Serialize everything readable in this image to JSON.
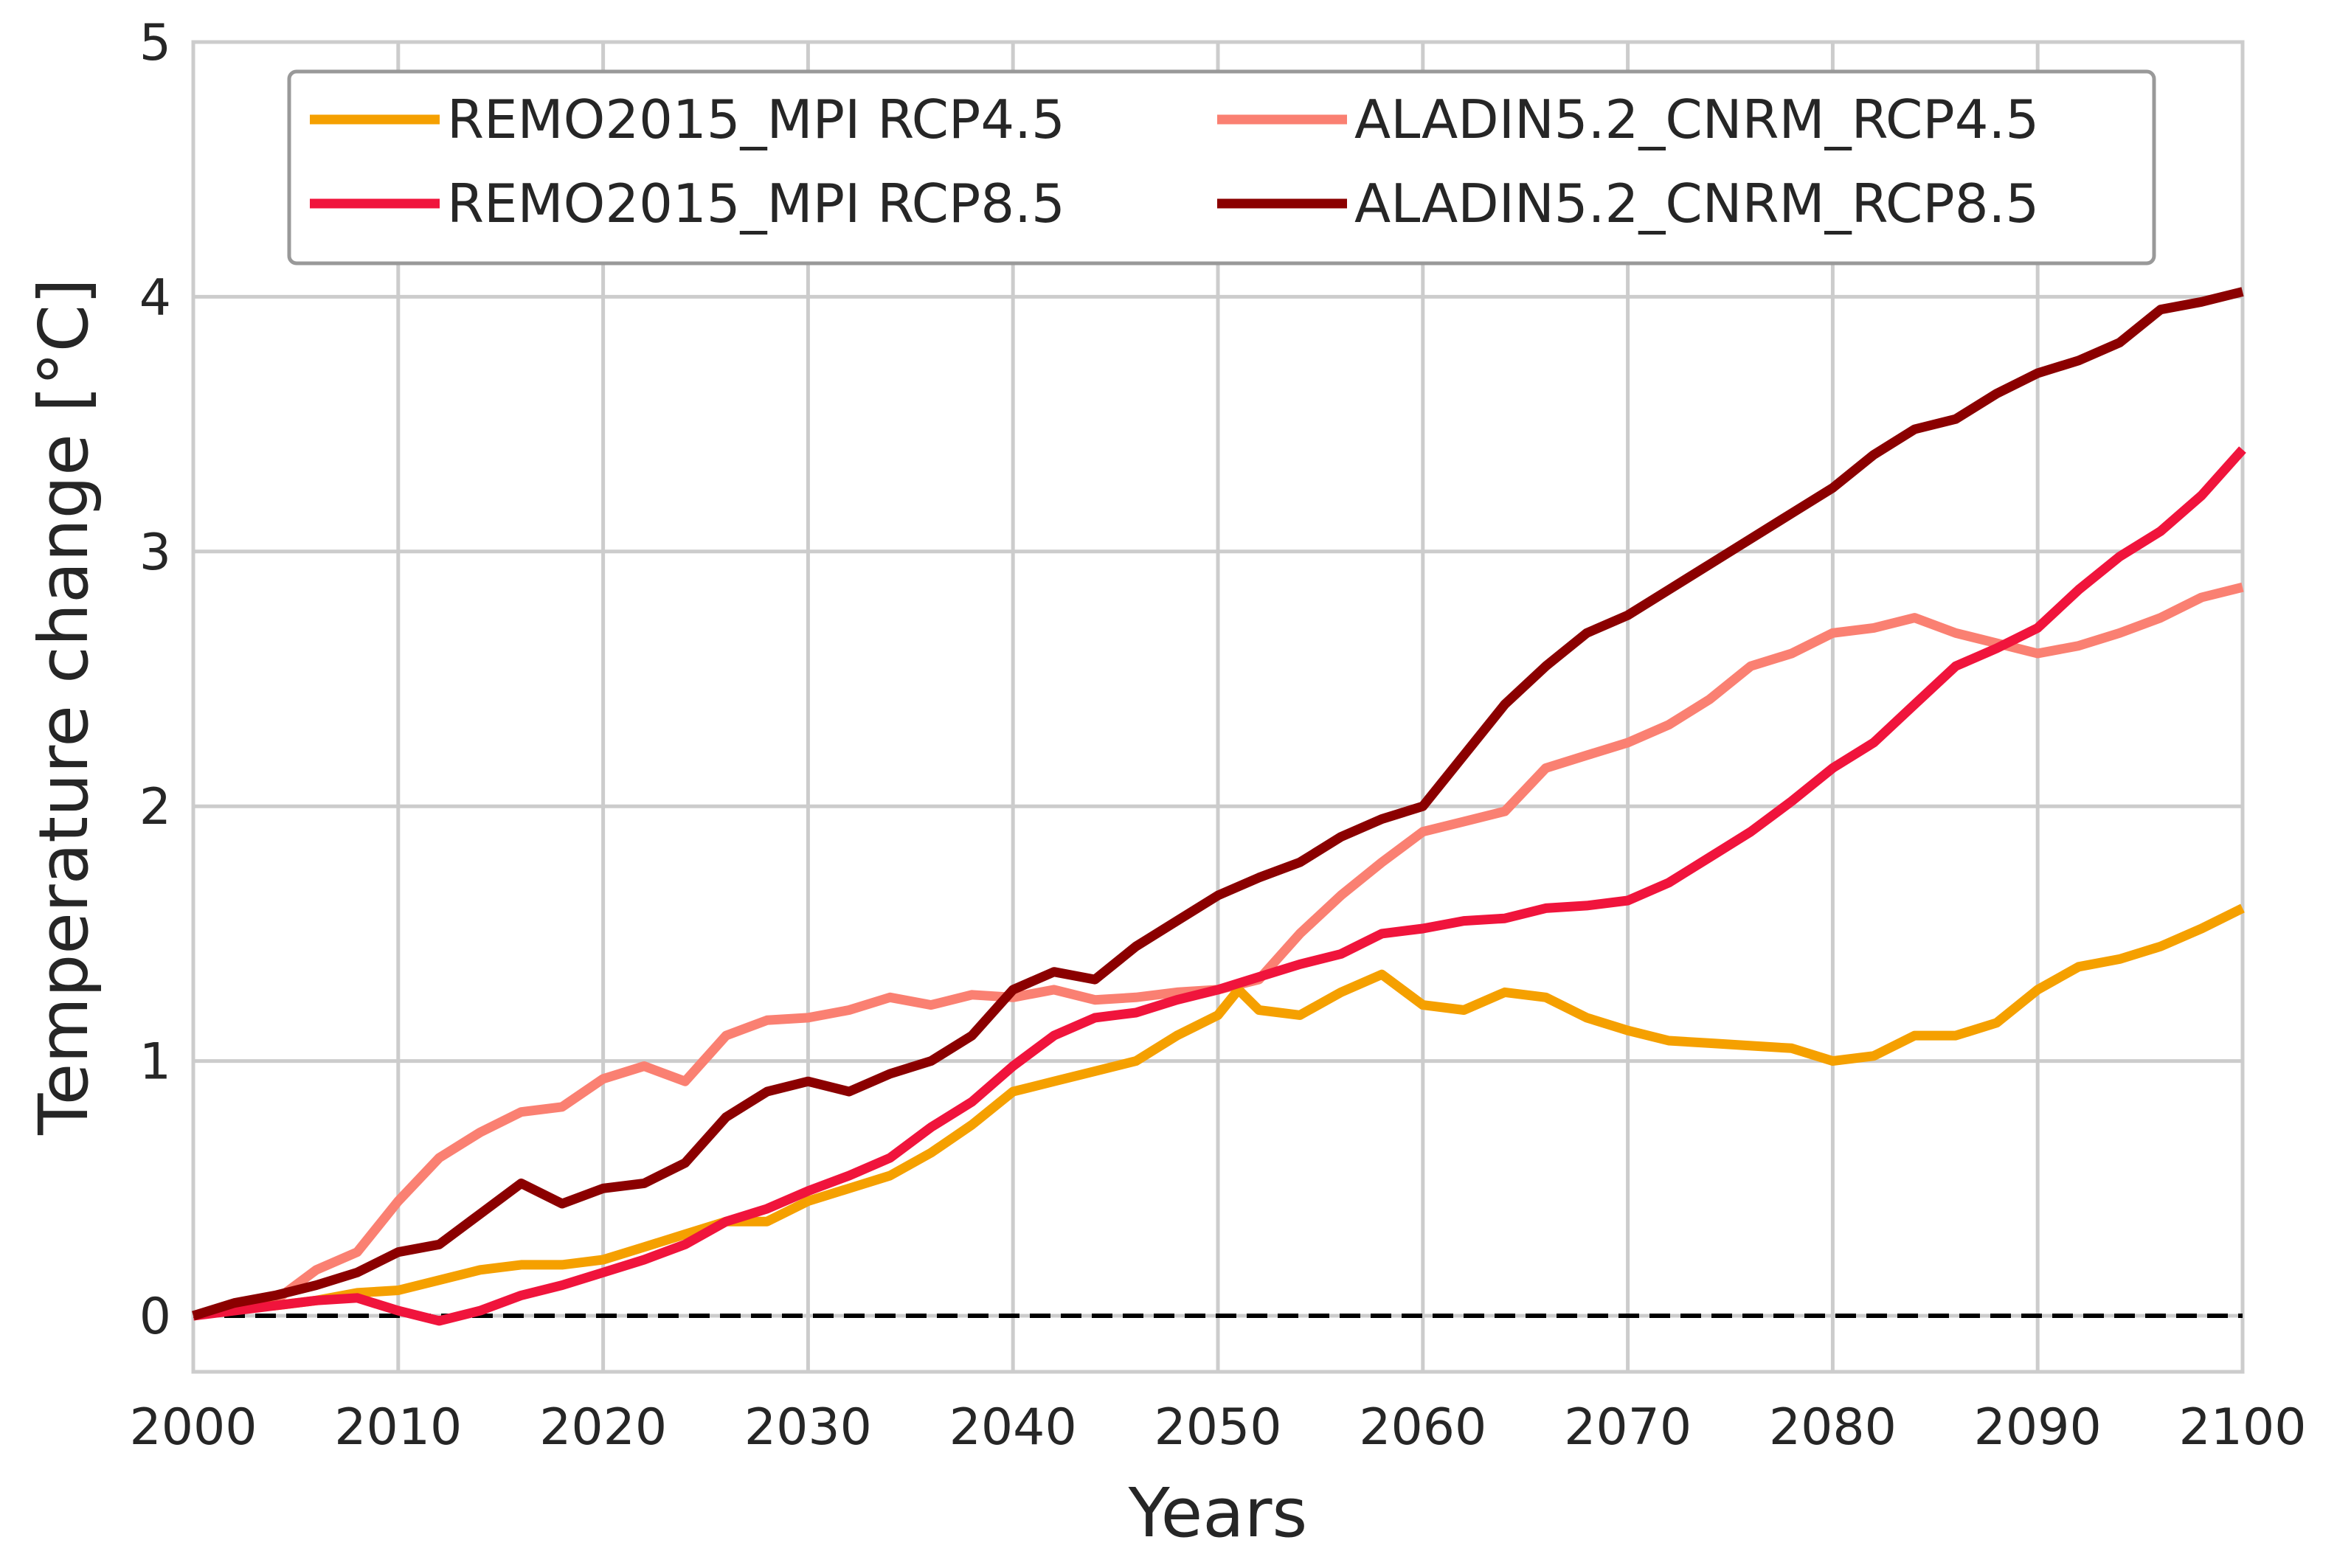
{
  "chart_data": {
    "type": "line",
    "title": "",
    "xlabel": "Years",
    "ylabel": "Temperature change [°C]",
    "xlim": [
      2000,
      2100
    ],
    "ylim": [
      -0.22,
      5
    ],
    "xticks": [
      2000,
      2010,
      2020,
      2030,
      2040,
      2050,
      2060,
      2070,
      2080,
      2090,
      2100
    ],
    "yticks": [
      0,
      1,
      2,
      3,
      4,
      5
    ],
    "grid": true,
    "legend_position": "top-center",
    "reference_line": {
      "y": 0,
      "style": "dashed",
      "color": "#000000"
    },
    "series": [
      {
        "name": "REMO2015_MPI RCP4.5",
        "color": "#F5A000",
        "x": [
          2000,
          2002,
          2004,
          2006,
          2008,
          2010,
          2012,
          2014,
          2016,
          2018,
          2020,
          2022,
          2024,
          2026,
          2028,
          2030,
          2032,
          2034,
          2036,
          2038,
          2040,
          2042,
          2044,
          2046,
          2048,
          2050,
          2051,
          2052,
          2054,
          2056,
          2058,
          2060,
          2062,
          2064,
          2066,
          2068,
          2070,
          2072,
          2074,
          2076,
          2078,
          2080,
          2082,
          2084,
          2086,
          2088,
          2090,
          2092,
          2094,
          2096,
          2098,
          2100
        ],
        "values": [
          0.0,
          0.03,
          0.04,
          0.06,
          0.09,
          0.1,
          0.14,
          0.18,
          0.2,
          0.2,
          0.22,
          0.27,
          0.32,
          0.37,
          0.37,
          0.45,
          0.5,
          0.55,
          0.64,
          0.75,
          0.88,
          0.92,
          0.96,
          1.0,
          1.1,
          1.18,
          1.28,
          1.2,
          1.18,
          1.27,
          1.34,
          1.22,
          1.2,
          1.27,
          1.25,
          1.17,
          1.12,
          1.08,
          1.07,
          1.06,
          1.05,
          1.0,
          1.02,
          1.1,
          1.1,
          1.15,
          1.28,
          1.37,
          1.4,
          1.45,
          1.52,
          1.6
        ]
      },
      {
        "name": "REMO2015_MPI RCP8.5",
        "color": "#F0143C",
        "x": [
          2000,
          2002,
          2004,
          2006,
          2008,
          2010,
          2012,
          2014,
          2016,
          2018,
          2020,
          2022,
          2024,
          2026,
          2028,
          2030,
          2032,
          2034,
          2036,
          2038,
          2040,
          2042,
          2044,
          2046,
          2048,
          2050,
          2052,
          2054,
          2056,
          2058,
          2060,
          2062,
          2064,
          2066,
          2068,
          2070,
          2072,
          2074,
          2076,
          2078,
          2080,
          2082,
          2084,
          2086,
          2088,
          2090,
          2092,
          2094,
          2096,
          2098,
          2100
        ],
        "values": [
          0.0,
          0.02,
          0.04,
          0.06,
          0.07,
          0.02,
          -0.02,
          0.02,
          0.08,
          0.12,
          0.17,
          0.22,
          0.28,
          0.37,
          0.42,
          0.49,
          0.55,
          0.62,
          0.74,
          0.84,
          0.98,
          1.1,
          1.17,
          1.19,
          1.24,
          1.28,
          1.33,
          1.38,
          1.42,
          1.5,
          1.52,
          1.55,
          1.56,
          1.6,
          1.61,
          1.63,
          1.7,
          1.8,
          1.9,
          2.02,
          2.15,
          2.25,
          2.4,
          2.55,
          2.62,
          2.7,
          2.85,
          2.98,
          3.08,
          3.22,
          3.4
        ]
      },
      {
        "name": "ALADIN5.2_CNRM_RCP4.5",
        "color": "#FA8072",
        "x": [
          2000,
          2002,
          2004,
          2006,
          2008,
          2010,
          2012,
          2014,
          2016,
          2018,
          2020,
          2022,
          2024,
          2026,
          2028,
          2030,
          2032,
          2034,
          2036,
          2038,
          2040,
          2042,
          2044,
          2046,
          2048,
          2050,
          2052,
          2054,
          2056,
          2058,
          2060,
          2062,
          2064,
          2066,
          2068,
          2070,
          2072,
          2074,
          2076,
          2078,
          2080,
          2082,
          2084,
          2086,
          2088,
          2090,
          2092,
          2094,
          2096,
          2098,
          2100
        ],
        "values": [
          0.0,
          0.04,
          0.06,
          0.18,
          0.25,
          0.45,
          0.62,
          0.72,
          0.8,
          0.82,
          0.93,
          0.98,
          0.92,
          1.1,
          1.16,
          1.17,
          1.2,
          1.25,
          1.22,
          1.26,
          1.25,
          1.28,
          1.24,
          1.25,
          1.27,
          1.28,
          1.32,
          1.5,
          1.65,
          1.78,
          1.9,
          1.94,
          1.98,
          2.15,
          2.2,
          2.25,
          2.32,
          2.42,
          2.55,
          2.6,
          2.68,
          2.7,
          2.74,
          2.68,
          2.64,
          2.6,
          2.63,
          2.68,
          2.74,
          2.82,
          2.86
        ]
      },
      {
        "name": "ALADIN5.2_CNRM_RCP8.5",
        "color": "#8B0000",
        "x": [
          2000,
          2002,
          2004,
          2006,
          2008,
          2010,
          2012,
          2014,
          2016,
          2018,
          2020,
          2022,
          2024,
          2026,
          2028,
          2030,
          2032,
          2034,
          2036,
          2038,
          2040,
          2042,
          2044,
          2046,
          2048,
          2050,
          2052,
          2054,
          2056,
          2058,
          2060,
          2062,
          2064,
          2066,
          2068,
          2070,
          2072,
          2074,
          2076,
          2078,
          2080,
          2082,
          2084,
          2086,
          2088,
          2090,
          2092,
          2094,
          2096,
          2098,
          2100
        ],
        "values": [
          0.0,
          0.05,
          0.08,
          0.12,
          0.17,
          0.25,
          0.28,
          0.4,
          0.52,
          0.44,
          0.5,
          0.52,
          0.6,
          0.78,
          0.88,
          0.92,
          0.88,
          0.95,
          1.0,
          1.1,
          1.28,
          1.35,
          1.32,
          1.45,
          1.55,
          1.65,
          1.72,
          1.78,
          1.88,
          1.95,
          2.0,
          2.2,
          2.4,
          2.55,
          2.68,
          2.75,
          2.85,
          2.95,
          3.05,
          3.15,
          3.25,
          3.38,
          3.48,
          3.52,
          3.62,
          3.7,
          3.75,
          3.82,
          3.95,
          3.98,
          4.02
        ]
      }
    ]
  }
}
